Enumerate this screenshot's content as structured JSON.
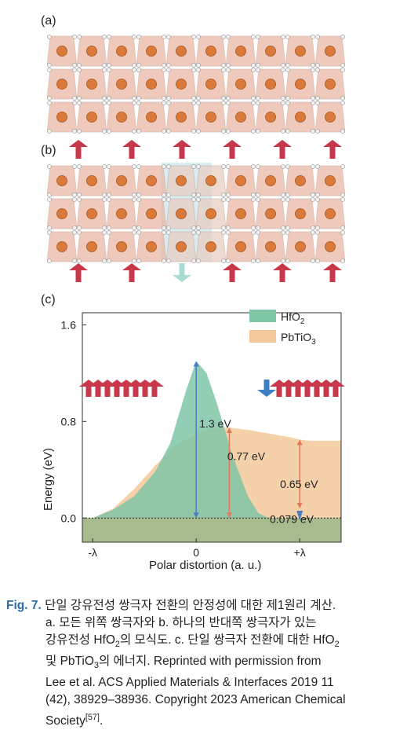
{
  "panels": {
    "a": "(a)",
    "b": "(b)",
    "c": "(c)"
  },
  "chart_data": {
    "type": "area",
    "xlabel": "Polar distortion (a. u.)",
    "ylabel": "Energy (eV)",
    "x_ticks": [
      "-λ",
      "0",
      "+λ"
    ],
    "y_ticks": [
      "0.0",
      "0.8",
      "1.6"
    ],
    "ylim": [
      -0.2,
      1.7
    ],
    "xlim": [
      -1.1,
      1.4
    ],
    "series": [
      {
        "name": "HfO2",
        "legend_main": "HfO",
        "legend_sub": "2",
        "color": "#7fc6a6",
        "x": [
          -1.1,
          -1.0,
          -0.8,
          -0.6,
          -0.4,
          -0.25,
          -0.1,
          0,
          0.1,
          0.2,
          0.35,
          0.5,
          0.6,
          0.7,
          0.85,
          1.0,
          1.2,
          1.4
        ],
        "y": [
          0,
          0,
          0.07,
          0.18,
          0.38,
          0.62,
          1.05,
          1.3,
          1.2,
          0.95,
          0.52,
          0.18,
          0.04,
          0,
          0,
          0,
          0,
          0
        ]
      },
      {
        "name": "PbTiO3",
        "legend_main": "PbTiO",
        "legend_sub": "3",
        "color": "#f3c99b",
        "x": [
          -1.1,
          -1.0,
          -0.8,
          -0.6,
          -0.4,
          -0.2,
          0,
          0.15,
          0.3,
          0.5,
          0.7,
          0.9,
          1.0,
          1.1,
          1.2,
          1.4
        ],
        "y": [
          0,
          0,
          0.08,
          0.24,
          0.43,
          0.6,
          0.7,
          0.74,
          0.75,
          0.73,
          0.7,
          0.67,
          0.65,
          0.64,
          0.64,
          0.64
        ]
      }
    ],
    "annotations": [
      {
        "text": "1.3 eV",
        "x": 0.0,
        "y": 0.75
      },
      {
        "text": "0.77 eV",
        "x": 0.27,
        "y": 0.48
      },
      {
        "text": "0.65 eV",
        "x": 0.78,
        "y": 0.25
      },
      {
        "text": "0.079 eV",
        "x": 0.68,
        "y": -0.04
      }
    ]
  },
  "caption": {
    "fig_label": "Fig. 7.",
    "line1": "단일 강유전성 쌍극자 전환의 안정성에 대한 제1원리 계산.",
    "line2": "a. 모든 위쪽 쌍극자와 b. 하나의 반대쪽 쌍극자가 있는",
    "line3a": "강유전성 HfO",
    "line3b": "의 모식도. c. 단일 쌍극자 전환에 대한 HfO",
    "line4a": "및 PbTiO",
    "line4b": "의 에너지. Reprinted with permission from",
    "line5": "Lee et al. ACS Applied Materials & Interfaces 2019 11",
    "line6": "(42), 38929–38936. Copyright 2023 American Chemical",
    "line7": "Society",
    "ref": "[57]",
    "end": ".",
    "sub2": "2",
    "sub3": "3"
  }
}
